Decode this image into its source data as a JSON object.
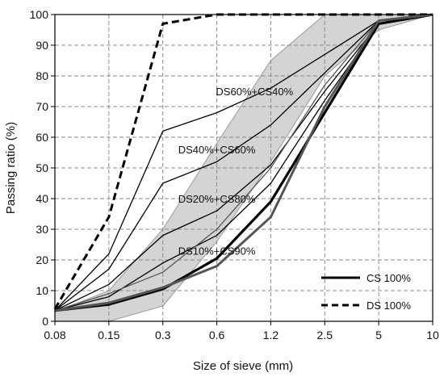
{
  "chart_data": {
    "type": "line",
    "xlabel": "Size of sieve (mm)",
    "ylabel": "Passing ratio (%)",
    "categories": [
      "0.08",
      "0.15",
      "0.3",
      "0.6",
      "1.2",
      "2.5",
      "5",
      "10"
    ],
    "ylim": [
      0,
      100
    ],
    "yticks": [
      0,
      10,
      20,
      30,
      40,
      50,
      60,
      70,
      80,
      90,
      100
    ],
    "grid": "horizontal dashed",
    "legend_position": "bottom-right",
    "band": {
      "lower": [
        0,
        0,
        5,
        26,
        52,
        80,
        95,
        100
      ],
      "upper": [
        3,
        10,
        30,
        58,
        85,
        100,
        100,
        100
      ],
      "color": "#d4d4d4"
    },
    "series": [
      {
        "name": "CS 100%",
        "values": [
          3.5,
          5.5,
          10.5,
          20.5,
          39,
          68,
          97,
          100
        ],
        "style": "thick"
      },
      {
        "name": "DS 100%",
        "values": [
          4,
          34,
          97,
          100,
          100,
          100,
          100,
          100
        ],
        "style": "dashed"
      },
      {
        "values": [
          3.5,
          22,
          62,
          68,
          76,
          87,
          98,
          100
        ],
        "style": "thin"
      },
      {
        "values": [
          3.5,
          17,
          45,
          52,
          64,
          81,
          98,
          100
        ],
        "style": "thin"
      },
      {
        "values": [
          3.5,
          12,
          28,
          36,
          51,
          75,
          97,
          100
        ],
        "style": "thin"
      },
      {
        "values": [
          3.5,
          8,
          19,
          28,
          45,
          72,
          97,
          100
        ],
        "style": "thin"
      },
      {
        "values": [
          3.5,
          9,
          16,
          30,
          50,
          77,
          98,
          100
        ],
        "style": "gray"
      },
      {
        "values": [
          3.5,
          6,
          11,
          18,
          34,
          70,
          98,
          100
        ],
        "style": "gray-thick"
      }
    ],
    "annotations": [
      {
        "text": "DS60%+CS40%",
        "x": "1.2",
        "y": 75
      },
      {
        "text": "DS40%+CS60%",
        "x": "0.6",
        "y": 56
      },
      {
        "text": "DS20%+CS80%",
        "x": "0.6",
        "y": 40
      },
      {
        "text": "DS10%+CS90%",
        "x": "0.6",
        "y": 23
      }
    ]
  }
}
